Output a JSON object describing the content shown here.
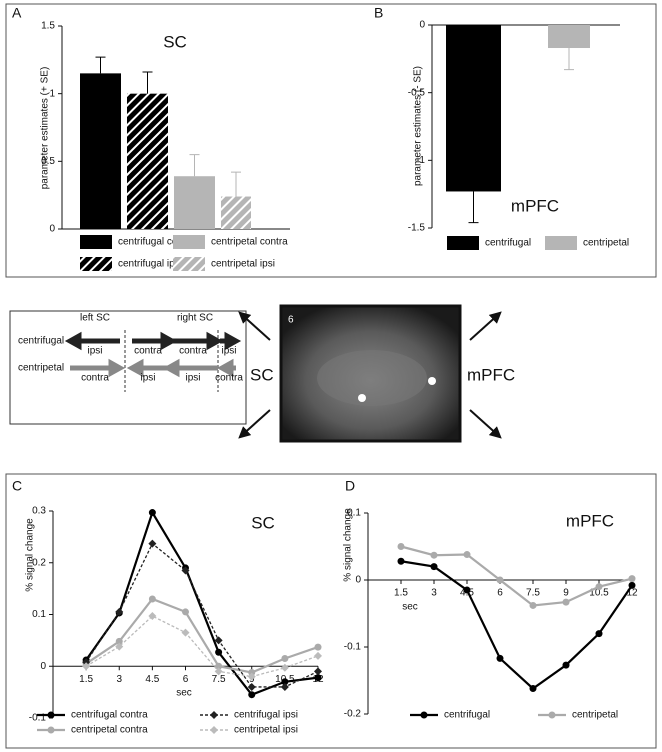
{
  "chart_data": [
    {
      "type": "bar",
      "panel_label": "A",
      "title": "SC",
      "ylabel": "parameter estimates (+ SE)",
      "ylim": [
        0,
        1.5
      ],
      "yticks": [
        0,
        0.5,
        1,
        1.5
      ],
      "series": [
        {
          "name": "centrifugal contra",
          "color": "#000000",
          "hatch": false,
          "values": [
            1.15
          ],
          "errors": [
            0.12
          ]
        },
        {
          "name": "centrifugal ipsi",
          "color": "#000000",
          "hatch": true,
          "values": [
            1.0
          ],
          "errors": [
            0.16
          ]
        },
        {
          "name": "centripetal contra",
          "color": "#b5b5b5",
          "hatch": false,
          "values": [
            0.39
          ],
          "errors": [
            0.16
          ]
        },
        {
          "name": "centripetal ipsi",
          "color": "#b5b5b5",
          "hatch": true,
          "values": [
            0.24
          ],
          "errors": [
            0.18
          ]
        }
      ]
    },
    {
      "type": "bar",
      "panel_label": "B",
      "title": "mPFC",
      "ylabel": "parameter estimates (- SE)",
      "ylim": [
        -1.5,
        0
      ],
      "yticks": [
        0,
        -0.5,
        -1,
        -1.5
      ],
      "series": [
        {
          "name": "centrifugal",
          "color": "#000000",
          "hatch": false,
          "values": [
            -1.23
          ],
          "errors": [
            0.23
          ]
        },
        {
          "name": "centripetal",
          "color": "#b5b5b5",
          "hatch": false,
          "values": [
            -0.17
          ],
          "errors": [
            0.16
          ]
        }
      ]
    },
    {
      "type": "line",
      "panel_label": "C",
      "title": "SC",
      "xlabel": "sec",
      "ylabel": "% signal change",
      "x": [
        1.5,
        3,
        4.5,
        6,
        7.5,
        9,
        10.5,
        12
      ],
      "xlim": [
        0,
        12
      ],
      "xticks": [
        1.5,
        3,
        4.5,
        6,
        7.5,
        9,
        10.5,
        12
      ],
      "ylim": [
        -0.1,
        0.3
      ],
      "yticks": [
        -0.1,
        0,
        0.1,
        0.2,
        0.3
      ],
      "series": [
        {
          "name": "centrifugal contra",
          "color": "#000000",
          "dashed": false,
          "marker": "circle",
          "values": [
            0.012,
            0.103,
            0.297,
            0.19,
            0.027,
            -0.055,
            -0.03,
            -0.022
          ]
        },
        {
          "name": "centripetal contra",
          "color": "#aaaaaa",
          "dashed": false,
          "marker": "circle",
          "values": [
            0.005,
            0.048,
            0.13,
            0.105,
            0.0,
            -0.012,
            0.015,
            0.037
          ]
        },
        {
          "name": "centrifugal ipsi",
          "color": "#222222",
          "dashed": true,
          "marker": "diamond",
          "values": [
            0.008,
            0.105,
            0.237,
            0.185,
            0.05,
            -0.04,
            -0.04,
            -0.01
          ]
        },
        {
          "name": "centripetal ipsi",
          "color": "#bbbbbb",
          "dashed": true,
          "marker": "diamond",
          "values": [
            0.0,
            0.038,
            0.097,
            0.065,
            -0.01,
            -0.02,
            -0.003,
            0.02
          ]
        }
      ]
    },
    {
      "type": "line",
      "panel_label": "D",
      "title": "mPFC",
      "xlabel": "sec",
      "ylabel": "% signal change",
      "x": [
        1.5,
        3,
        4.5,
        6,
        7.5,
        9,
        10.5,
        12
      ],
      "xlim": [
        0,
        12
      ],
      "xticks": [
        1.5,
        3,
        4.5,
        6,
        7.5,
        9,
        10.5,
        12
      ],
      "ylim": [
        -0.2,
        0.1
      ],
      "yticks": [
        -0.2,
        -0.1,
        0,
        0.1
      ],
      "series": [
        {
          "name": "centrifugal",
          "color": "#000000",
          "dashed": false,
          "marker": "circle",
          "values": [
            0.028,
            0.02,
            -0.015,
            -0.117,
            -0.162,
            -0.127,
            -0.08,
            -0.008
          ]
        },
        {
          "name": "centripetal",
          "color": "#aaaaaa",
          "dashed": false,
          "marker": "circle",
          "values": [
            0.05,
            0.037,
            0.038,
            0.0,
            -0.038,
            -0.033,
            -0.01,
            0.002
          ]
        }
      ]
    }
  ],
  "diagram": {
    "left_label": "left SC",
    "right_label": "right SC",
    "rows": [
      {
        "name": "centrifugal",
        "labels": [
          "ipsi",
          "contra",
          "contra",
          "ipsi"
        ]
      },
      {
        "name": "centripetal",
        "labels": [
          "contra",
          "ipsi",
          "ipsi",
          "contra"
        ]
      }
    ],
    "image_label": "6",
    "left_region": "SC",
    "right_region": "mPFC"
  }
}
